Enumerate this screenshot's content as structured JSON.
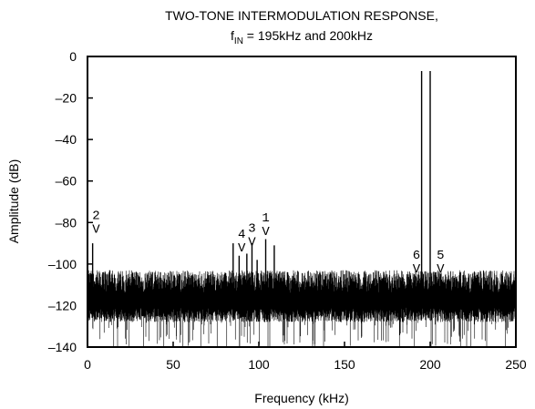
{
  "chart_data": {
    "type": "line",
    "title_line1": "TWO-TONE INTERMODULATION RESPONSE,",
    "title_line2_main": "f",
    "title_line2_sub": "IN",
    "title_line2_rest": " = 195kHz and 200kHz",
    "xlabel": "Frequency (kHz)",
    "ylabel": "Amplitude (dB)",
    "xlim": [
      0,
      250
    ],
    "ylim": [
      -140,
      0
    ],
    "xticks": [
      0,
      50,
      100,
      150,
      200,
      250
    ],
    "yticks": [
      0,
      -20,
      -40,
      -60,
      -80,
      -100,
      -120,
      -140
    ],
    "noise_floor": {
      "center_db": -117,
      "upper_db": -105,
      "lower_db": -140
    },
    "spurs": [
      {
        "x": 3,
        "y": -90
      },
      {
        "x": 9,
        "y": -104
      },
      {
        "x": 13,
        "y": -103
      },
      {
        "x": 85,
        "y": -90
      },
      {
        "x": 88.5,
        "y": -96
      },
      {
        "x": 93,
        "y": -95
      },
      {
        "x": 96,
        "y": -90
      },
      {
        "x": 99,
        "y": -98
      },
      {
        "x": 104,
        "y": -88
      },
      {
        "x": 109,
        "y": -91
      },
      {
        "x": 193,
        "y": -108
      },
      {
        "x": 195,
        "y": -7
      },
      {
        "x": 200,
        "y": -7
      },
      {
        "x": 203,
        "y": -104
      }
    ],
    "markers": [
      {
        "label": "2",
        "arrow": "V",
        "x": 5,
        "y": -85
      },
      {
        "label": "4",
        "arrow": "V",
        "x": 90,
        "y": -94
      },
      {
        "label": "3",
        "arrow": "V",
        "x": 96,
        "y": -91
      },
      {
        "label": "1",
        "arrow": "V",
        "x": 104,
        "y": -86
      },
      {
        "label": "6",
        "arrow": "V",
        "x": 192,
        "y": -104
      },
      {
        "label": "5",
        "arrow": "V",
        "x": 206,
        "y": -104
      }
    ]
  }
}
